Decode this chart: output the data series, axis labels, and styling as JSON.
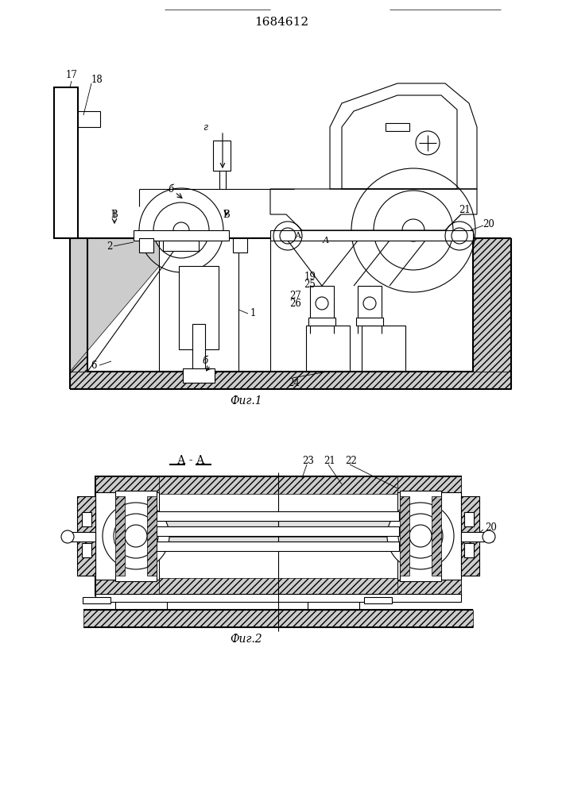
{
  "patent_number": "1684612",
  "fig1_caption": "Фиг.1",
  "fig2_caption": "Фиг.2",
  "fig2_section": "А - А",
  "bg_color": "#ffffff",
  "line_color": "#000000",
  "lw": 0.8,
  "tlw": 1.5,
  "font_size": 8.5,
  "hatch_lw": 0.4
}
